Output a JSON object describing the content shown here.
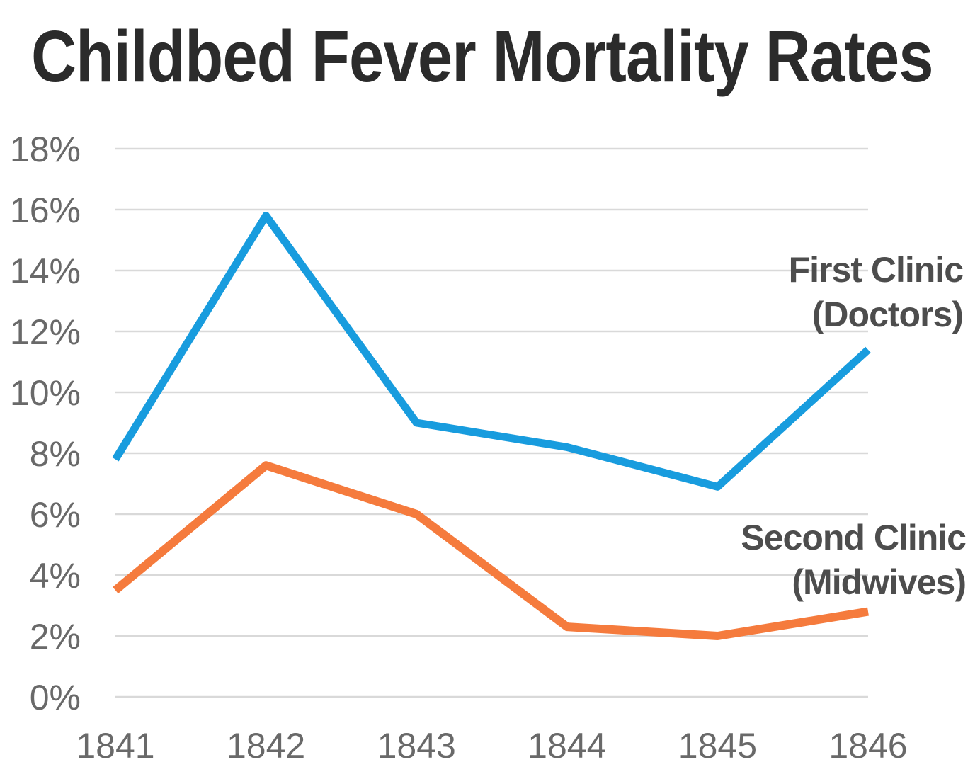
{
  "colors": {
    "background": "#ffffff",
    "title_text": "#2b2b2b",
    "tick_label": "#696969",
    "gridline": "#d9d9d9",
    "series_label_text": "#4d4d4d",
    "first_clinic_line": "#189cde",
    "second_clinic_line": "#f57b3d"
  },
  "chart_data": {
    "type": "line",
    "title": "Childbed Fever Mortality Rates",
    "xlabel": "",
    "ylabel": "",
    "x_labels": [
      "1841",
      "1842",
      "1843",
      "1844",
      "1845",
      "1846"
    ],
    "y_tick_values": [
      0,
      2,
      4,
      6,
      8,
      10,
      12,
      14,
      16,
      18
    ],
    "y_tick_labels": [
      "0%",
      "2%",
      "4%",
      "6%",
      "8%",
      "10%",
      "12%",
      "14%",
      "16%",
      "18%"
    ],
    "ylim": [
      0,
      18
    ],
    "unit": "percent",
    "grid": "horizontal-only",
    "legend_position": "inline-labels-right",
    "series": [
      {
        "name": "First Clinic (Doctors)",
        "label_lines": [
          "First Clinic",
          "(Doctors)"
        ],
        "color": "#189cde",
        "values": [
          7.8,
          15.8,
          9.0,
          8.2,
          6.9,
          11.4
        ]
      },
      {
        "name": "Second Clinic (Midwives)",
        "label_lines": [
          "Second Clinic",
          "(Midwives)"
        ],
        "color": "#f57b3d",
        "values": [
          3.5,
          7.6,
          6.0,
          2.3,
          2.0,
          2.8
        ]
      }
    ]
  }
}
